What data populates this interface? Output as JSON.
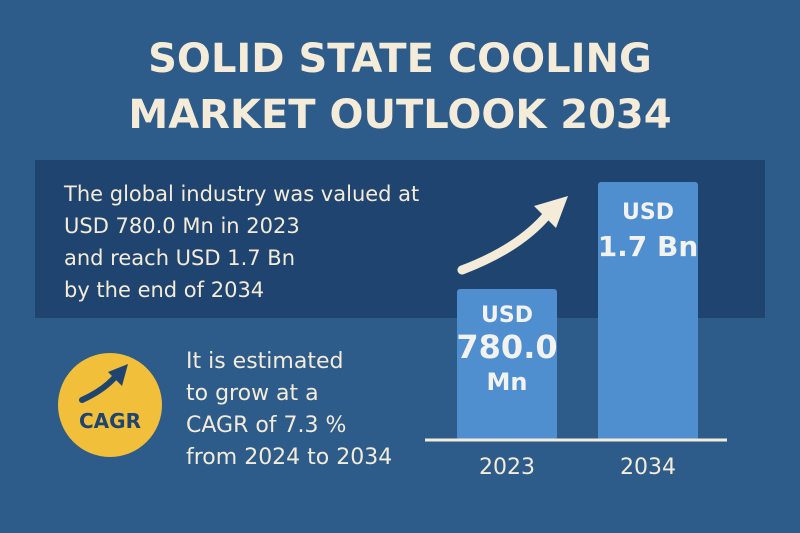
{
  "header": {
    "title_lines": [
      "SOLID STATE COOLING",
      "MARKET OUTLOOK 2034"
    ]
  },
  "summary": {
    "lines": [
      "The global industry was valued at",
      "USD 780.0 Mn in 2023",
      "and reach USD 1.7 Bn",
      "by the end of 2034"
    ]
  },
  "cagr": {
    "badge": "CAGR",
    "lines": [
      "It is estimated",
      "to grow at a",
      "CAGR of 7.3 %",
      "from 2024 to 2034"
    ]
  },
  "bars": [
    {
      "year": "2023",
      "label_lines": [
        "USD",
        "780.0",
        "Mn"
      ]
    },
    {
      "year": "2034",
      "label_lines": [
        "USD",
        "1.7 Bn"
      ]
    }
  ]
}
